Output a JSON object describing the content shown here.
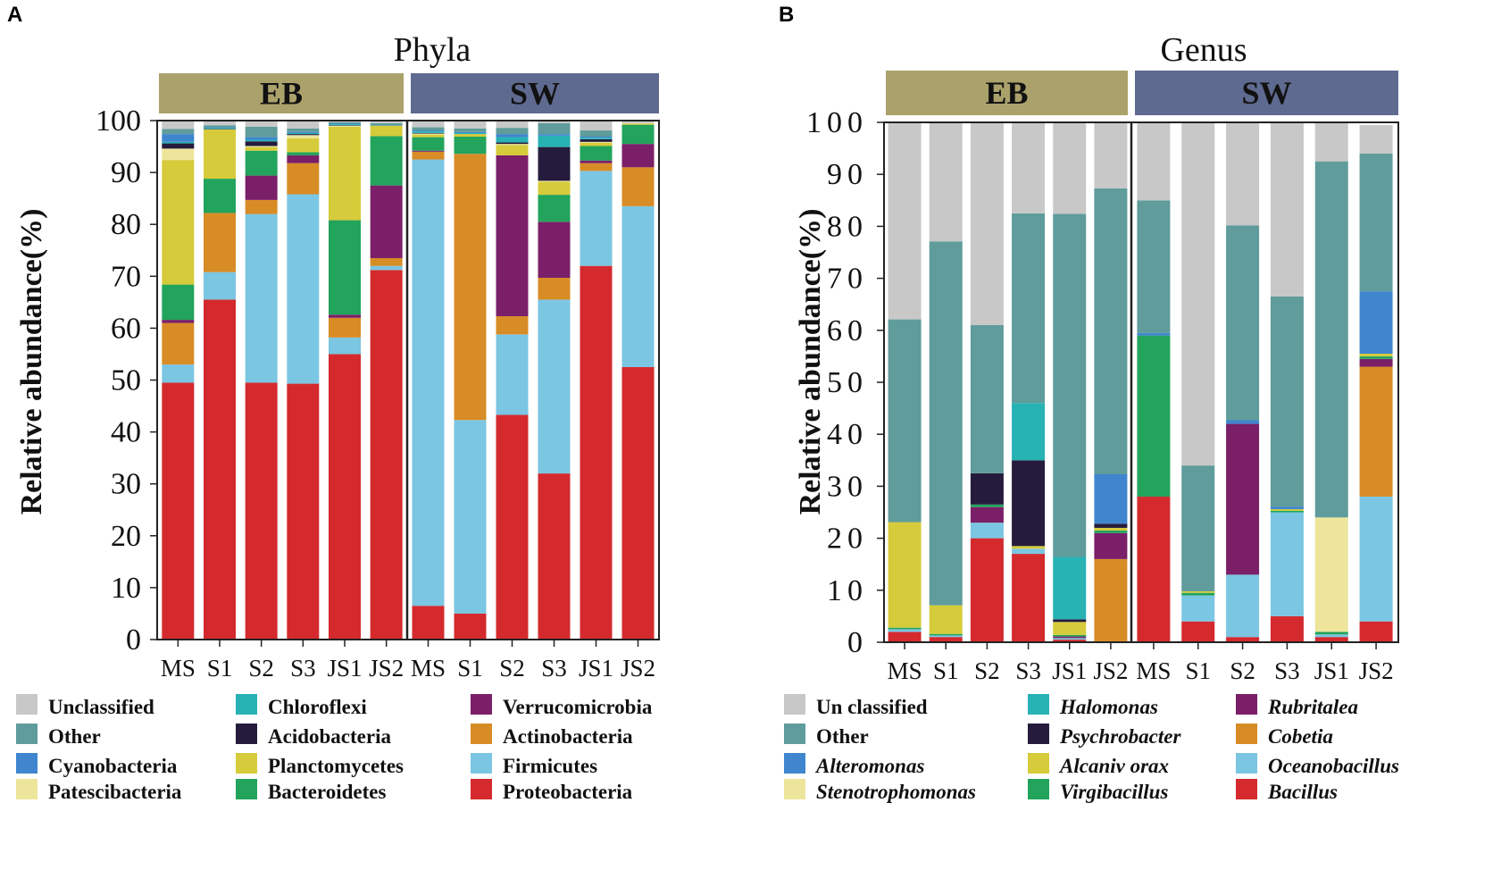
{
  "panels": {
    "A": {
      "letter": "A",
      "title": "Phyla",
      "ylabel": "Relative abundance(%)",
      "groups": [
        {
          "label": "EB",
          "color": "#aba26b"
        },
        {
          "label": "SW",
          "color": "#5e6a8f"
        }
      ]
    },
    "B": {
      "letter": "B",
      "title": "Genus",
      "ylabel": "Relative abundance(%)",
      "groups": [
        {
          "label": "EB",
          "color": "#aba26b"
        },
        {
          "label": "SW",
          "color": "#5e6a8f"
        }
      ]
    }
  },
  "chart_data": [
    {
      "type": "bar",
      "stacked": true,
      "title": "Phyla",
      "ylabel": "Relative abundance(%)",
      "ylim": [
        0,
        100
      ],
      "yticks": [
        "0",
        "10",
        "20",
        "30",
        "40",
        "50",
        "60",
        "70",
        "80",
        "90",
        "100"
      ],
      "categories": [
        "MS",
        "S1",
        "S2",
        "S3",
        "JS1",
        "JS2",
        "MS",
        "S1",
        "S2",
        "S3",
        "JS1",
        "JS2"
      ],
      "series": [
        {
          "name": "Proteobacteria",
          "color": "#d42a2e",
          "values": [
            49.5,
            65.5,
            49.5,
            49.3,
            55,
            71.2,
            6.5,
            5,
            43.3,
            32,
            72,
            52.5
          ]
        },
        {
          "name": "Firmicutes",
          "color": "#7bc6e2",
          "values": [
            3.5,
            5.3,
            32.5,
            36.5,
            3.2,
            0.8,
            86,
            37.3,
            15.5,
            33.5,
            18.3,
            31
          ]
        },
        {
          "name": "Actinobacteria",
          "color": "#d88c26",
          "values": [
            8,
            11.4,
            2.7,
            6,
            3.8,
            1.5,
            1.5,
            51.3,
            3.5,
            4.2,
            1.5,
            7.5
          ]
        },
        {
          "name": "Verrucomicrobia",
          "color": "#7a1f68",
          "values": [
            0.6,
            0,
            4.7,
            1.5,
            0.6,
            14,
            0.2,
            0,
            31,
            10.8,
            0.5,
            4.5
          ]
        },
        {
          "name": "Bacteroidetes",
          "color": "#22a45c",
          "values": [
            6.8,
            6.6,
            4.8,
            0.6,
            18.2,
            9.5,
            2.6,
            3.3,
            0,
            5.2,
            2.8,
            3.7
          ]
        },
        {
          "name": "Planctomycetes",
          "color": "#d6cb3a",
          "values": [
            24,
            9.5,
            0.7,
            2.7,
            18,
            2,
            0.5,
            0.5,
            2,
            2.5,
            0.6,
            0.2
          ]
        },
        {
          "name": "Patescibacteria",
          "color": "#ede59b",
          "values": [
            2.2,
            0,
            0.2,
            0.6,
            0.2,
            0,
            0.2,
            0,
            0.2,
            0.2,
            0.2,
            0.1
          ]
        },
        {
          "name": "Acidobacteria",
          "color": "#251c3d",
          "values": [
            1,
            0.1,
            0.9,
            0.2,
            0.1,
            0,
            0.1,
            0,
            0.3,
            6.5,
            0.5,
            0
          ]
        },
        {
          "name": "Chloroflexi",
          "color": "#27b2b4",
          "values": [
            0.3,
            0.2,
            0.3,
            0.2,
            0.2,
            0,
            0.3,
            0.2,
            1,
            2.2,
            0.3,
            0
          ]
        },
        {
          "name": "Cyanobacteria",
          "color": "#3f86cf",
          "values": [
            1.5,
            0.1,
            0.5,
            0.2,
            0.1,
            0,
            0.2,
            0.2,
            0.6,
            0.3,
            0.2,
            0
          ]
        },
        {
          "name": "Other",
          "color": "#5f9c9b",
          "values": [
            1,
            0.4,
            2,
            0.7,
            0.3,
            0.5,
            0.6,
            0.7,
            1.2,
            2.1,
            1.2,
            0
          ]
        },
        {
          "name": "Unclassified",
          "color": "#c8c8c8",
          "values": [
            1.6,
            1,
            1.2,
            1.5,
            0.3,
            0.5,
            1.3,
            1.5,
            1.4,
            0.5,
            1.9,
            0.5
          ]
        }
      ],
      "groups": [
        {
          "label": "EB",
          "span": [
            0,
            5
          ]
        },
        {
          "label": "SW",
          "span": [
            6,
            11
          ]
        }
      ]
    },
    {
      "type": "bar",
      "stacked": true,
      "title": "Genus",
      "ylabel": "Relative abundance(%)",
      "ylim": [
        0,
        100
      ],
      "yticks": [
        "0",
        "10",
        "20",
        "30",
        "40",
        "50",
        "60",
        "70",
        "80",
        "90",
        "100"
      ],
      "categories": [
        "MS",
        "S1",
        "S2",
        "S3",
        "JS1",
        "JS2",
        "MS",
        "S1",
        "S2",
        "S3",
        "JS1",
        "JS2"
      ],
      "series": [
        {
          "name": "Bacillus",
          "color": "#d42a2e",
          "values": [
            2,
            1,
            20,
            17,
            0.5,
            0,
            28,
            4,
            1,
            5,
            1,
            4
          ]
        },
        {
          "name": "Oceanobacillus",
          "color": "#7bc6e2",
          "values": [
            0.5,
            0.3,
            3,
            1,
            0.3,
            0,
            0,
            5,
            12,
            20,
            0.5,
            24
          ]
        },
        {
          "name": "Cobetia",
          "color": "#d88c26",
          "values": [
            0,
            0,
            0,
            0,
            0,
            16,
            0,
            0,
            0,
            0,
            0,
            25
          ]
        },
        {
          "name": "Rubritalea",
          "color": "#7a1f68",
          "values": [
            0,
            0,
            3,
            0,
            0.3,
            5,
            0,
            0,
            29,
            0,
            0,
            1.5
          ]
        },
        {
          "name": "Virgibacillus",
          "color": "#22a45c",
          "values": [
            0.3,
            0.3,
            0.5,
            0,
            0.3,
            0.5,
            31,
            0.5,
            0,
            0.3,
            0.5,
            0.5
          ]
        },
        {
          "name": "Alcanivorax",
          "color": "#d6cb3a",
          "values": [
            20.3,
            5.5,
            0,
            0.5,
            2.5,
            0.5,
            0,
            0.3,
            0,
            0.3,
            0,
            0.5
          ]
        },
        {
          "name": "Stenotrophomonas",
          "color": "#ede59b",
          "values": [
            0,
            0,
            0,
            0,
            0,
            0,
            0,
            0,
            0,
            0,
            22,
            0
          ]
        },
        {
          "name": "Psychrobacter",
          "color": "#251c3d",
          "values": [
            0,
            0,
            6,
            16.5,
            0.5,
            0.8,
            0,
            0,
            0,
            0,
            0,
            0
          ]
        },
        {
          "name": "Halomonas",
          "color": "#27b2b4",
          "values": [
            0,
            0,
            0,
            11,
            12,
            0,
            0,
            0,
            0,
            0,
            0,
            0
          ]
        },
        {
          "name": "Alteromonas",
          "color": "#3f86cf",
          "values": [
            0,
            0,
            0,
            0,
            0,
            9.5,
            0.5,
            0,
            0.7,
            0.5,
            0,
            12
          ]
        },
        {
          "name": "Other",
          "color": "#5f9c9b",
          "values": [
            39,
            70,
            28.5,
            36.5,
            66,
            55,
            25.5,
            24.2,
            37.5,
            40.4,
            68.5,
            26.5
          ]
        },
        {
          "name": "Unclassified",
          "color": "#c8c8c8",
          "values": [
            37.9,
            22.9,
            39,
            17.5,
            17.6,
            12.7,
            15,
            66,
            19.8,
            33.5,
            7.5,
            5.5
          ]
        }
      ],
      "groups": [
        {
          "label": "EB",
          "span": [
            0,
            5
          ]
        },
        {
          "label": "SW",
          "span": [
            6,
            11
          ]
        }
      ]
    }
  ],
  "legends": {
    "phyla": [
      [
        "Unclassified",
        "Chloroflexi",
        "Verrucomicrobia"
      ],
      [
        "Other",
        "Acidobacteria",
        "Actinobacteria"
      ],
      [
        "Cyanobacteria",
        "Planctomycetes",
        "Firmicutes"
      ],
      [
        "Patescibacteria",
        "Bacteroidetes",
        "Proteobacteria"
      ]
    ],
    "genus": [
      [
        "Un classified",
        "Halomonas",
        "Rubritalea"
      ],
      [
        "Other",
        "Psychrobacter",
        "Cobetia"
      ],
      [
        "Alteromonas",
        "Alcaniv orax",
        "Oceanobacillus"
      ],
      [
        "Stenotrophomonas",
        "Virgibacillus",
        "Bacillus"
      ]
    ],
    "colors": {
      "Unclassified": "#c8c8c8",
      "Un classified": "#c8c8c8",
      "Other": "#5f9c9b",
      "Cyanobacteria": "#3f86cf",
      "Alteromonas": "#3f86cf",
      "Patescibacteria": "#ede59b",
      "Stenotrophomonas": "#ede59b",
      "Chloroflexi": "#27b2b4",
      "Halomonas": "#27b2b4",
      "Acidobacteria": "#251c3d",
      "Psychrobacter": "#251c3d",
      "Planctomycetes": "#d6cb3a",
      "Alcaniv orax": "#d6cb3a",
      "Bacteroidetes": "#22a45c",
      "Virgibacillus": "#22a45c",
      "Verrucomicrobia": "#7a1f68",
      "Rubritalea": "#7a1f68",
      "Actinobacteria": "#d88c26",
      "Cobetia": "#d88c26",
      "Firmicutes": "#7bc6e2",
      "Oceanobacillus": "#7bc6e2",
      "Proteobacteria": "#d42a2e",
      "Bacillus": "#d42a2e"
    }
  }
}
